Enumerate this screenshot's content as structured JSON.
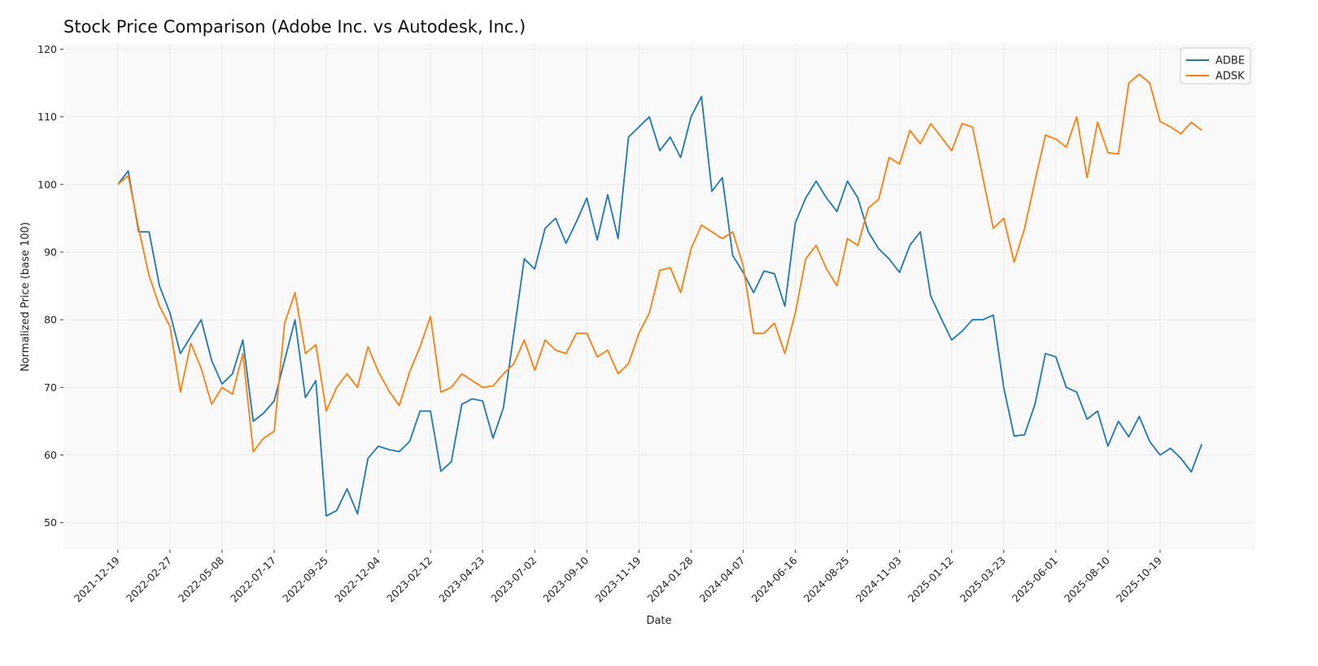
{
  "chart_data": {
    "type": "line",
    "title": "Stock Price Comparison (Adobe Inc. vs Autodesk, Inc.)",
    "xlabel": "Date",
    "ylabel": "Normalized Price (base 100)",
    "xlim": [
      "2021-10-07",
      "2026-02-24"
    ],
    "ylim": [
      46.0,
      120.9
    ],
    "yticks": [
      50,
      60,
      70,
      80,
      90,
      100,
      110,
      120
    ],
    "xticks": [
      "2021-12-19",
      "2022-02-27",
      "2022-05-08",
      "2022-07-17",
      "2022-09-25",
      "2022-12-04",
      "2023-02-12",
      "2023-04-23",
      "2023-07-02",
      "2023-09-10",
      "2023-11-19",
      "2024-01-28",
      "2024-04-07",
      "2024-06-16",
      "2024-08-25",
      "2024-11-03",
      "2025-01-12",
      "2025-03-23",
      "2025-06-01",
      "2025-08-10",
      "2025-10-19"
    ],
    "grid": true,
    "legend_position": "top-right",
    "x": [
      "2021-12-19",
      "2022-01-02",
      "2022-01-16",
      "2022-01-30",
      "2022-02-13",
      "2022-02-27",
      "2022-03-13",
      "2022-03-27",
      "2022-04-10",
      "2022-04-24",
      "2022-05-08",
      "2022-05-22",
      "2022-06-05",
      "2022-06-19",
      "2022-07-03",
      "2022-07-17",
      "2022-07-31",
      "2022-08-14",
      "2022-08-28",
      "2022-09-11",
      "2022-09-25",
      "2022-10-09",
      "2022-10-23",
      "2022-11-06",
      "2022-11-20",
      "2022-12-04",
      "2022-12-18",
      "2023-01-01",
      "2023-01-15",
      "2023-01-29",
      "2023-02-12",
      "2023-02-26",
      "2023-03-12",
      "2023-03-26",
      "2023-04-09",
      "2023-04-23",
      "2023-05-07",
      "2023-05-21",
      "2023-06-04",
      "2023-06-18",
      "2023-07-02",
      "2023-07-16",
      "2023-07-30",
      "2023-08-13",
      "2023-08-27",
      "2023-09-10",
      "2023-09-24",
      "2023-10-08",
      "2023-10-22",
      "2023-11-05",
      "2023-11-19",
      "2023-12-03",
      "2023-12-17",
      "2023-12-31",
      "2024-01-14",
      "2024-01-28",
      "2024-02-11",
      "2024-02-25",
      "2024-03-10",
      "2024-03-24",
      "2024-04-07",
      "2024-04-21",
      "2024-05-05",
      "2024-05-19",
      "2024-06-02",
      "2024-06-16",
      "2024-06-30",
      "2024-07-14",
      "2024-07-28",
      "2024-08-11",
      "2024-08-25",
      "2024-09-08",
      "2024-09-22",
      "2024-10-06",
      "2024-10-20",
      "2024-11-03",
      "2024-11-17",
      "2024-12-01",
      "2024-12-15",
      "2024-12-29",
      "2025-01-12",
      "2025-01-26",
      "2025-02-09",
      "2025-02-23",
      "2025-03-09",
      "2025-03-23",
      "2025-04-06",
      "2025-04-20",
      "2025-05-04",
      "2025-05-18",
      "2025-06-01",
      "2025-06-15",
      "2025-06-29",
      "2025-07-13",
      "2025-07-27",
      "2025-08-10",
      "2025-08-24",
      "2025-09-07",
      "2025-09-21",
      "2025-10-05",
      "2025-10-19",
      "2025-11-02",
      "2025-11-16",
      "2025-11-30",
      "2025-12-14"
    ],
    "series": [
      {
        "name": "ADBE",
        "color": "#1f77b4",
        "values": [
          100,
          102,
          93,
          93,
          85,
          81,
          75,
          77.5,
          80,
          74,
          70.5,
          72,
          77,
          65,
          66.2,
          68,
          74,
          80,
          68.5,
          71,
          51,
          51.8,
          55,
          51.3,
          59.5,
          61.3,
          60.8,
          60.5,
          62,
          66.5,
          66.5,
          57.6,
          59,
          67.5,
          68.3,
          68,
          62.5,
          67,
          78,
          89,
          87.5,
          93.5,
          95,
          91.3,
          94.5,
          98,
          91.8,
          98.5,
          92,
          107,
          108.5,
          110,
          105,
          107,
          104,
          110,
          113,
          99,
          101,
          89.5,
          87,
          84,
          87.2,
          86.8,
          82,
          94.3,
          98,
          100.5,
          98,
          96,
          100.5,
          98,
          93,
          90.5,
          89,
          87,
          91,
          93,
          83.5,
          80.2,
          77,
          78.3,
          80,
          80,
          80.7,
          70,
          62.8,
          63,
          67.5,
          75,
          74.5,
          70,
          69.3,
          65.3,
          66.5,
          61.3,
          65,
          62.7,
          65.7,
          62,
          60,
          61,
          59.5,
          57.5,
          61.6
        ]
      },
      {
        "name": "ADSK",
        "color": "#ff7f0e",
        "values": [
          100,
          101.3,
          93.5,
          86.5,
          82,
          79,
          69.3,
          76.5,
          72.8,
          67.5,
          70,
          69,
          75,
          60.5,
          62.5,
          63.5,
          79.5,
          84,
          75,
          76.3,
          66.5,
          70,
          72,
          70,
          76,
          72.3,
          69.5,
          67.3,
          72.3,
          76,
          80.5,
          69.3,
          70,
          72,
          71,
          70,
          70.2,
          72,
          73.5,
          77,
          72.5,
          77,
          75.5,
          75,
          78,
          78,
          74.5,
          75.5,
          72,
          73.5,
          78,
          81,
          87.3,
          87.7,
          84,
          90.5,
          94,
          93,
          92,
          93,
          88,
          78,
          78,
          79.5,
          75,
          81,
          89,
          91,
          87.5,
          85,
          92,
          91,
          96.5,
          97.8,
          104,
          103,
          108,
          106,
          109,
          107,
          105,
          109,
          108.5,
          101,
          93.5,
          95,
          88.5,
          93.5,
          100.5,
          107.3,
          106.7,
          105.5,
          110,
          101,
          109.2,
          104.7,
          104.5,
          115,
          116.3,
          115,
          109.3,
          108.5,
          107.5,
          109.2,
          108
        ]
      }
    ]
  }
}
